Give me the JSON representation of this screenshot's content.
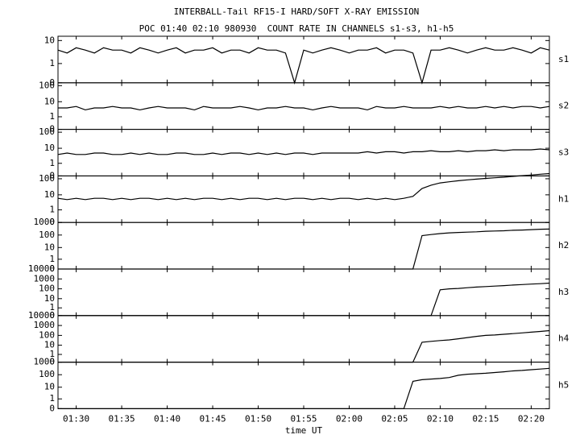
{
  "title": "INTERBALL-Tail RF15-I HARD/SOFT X-RAY EMISSION",
  "subtitle": "POC 01:40 02:10 980930  COUNT RATE IN CHANNELS s1-s3, h1-h5",
  "xlabel": "time UT",
  "x": [
    "01:28",
    "01:29",
    "01:30",
    "01:31",
    "01:32",
    "01:33",
    "01:34",
    "01:35",
    "01:36",
    "01:37",
    "01:38",
    "01:39",
    "01:40",
    "01:41",
    "01:42",
    "01:43",
    "01:44",
    "01:45",
    "01:46",
    "01:47",
    "01:48",
    "01:49",
    "01:50",
    "01:51",
    "01:52",
    "01:53",
    "01:54",
    "01:55",
    "01:56",
    "01:57",
    "01:58",
    "01:59",
    "02:00",
    "02:01",
    "02:02",
    "02:03",
    "02:04",
    "02:05",
    "02:06",
    "02:07",
    "02:08",
    "02:09",
    "02:10",
    "02:11",
    "02:12",
    "02:13",
    "02:14",
    "02:15",
    "02:16",
    "02:17",
    "02:18",
    "02:19",
    "02:20",
    "02:21",
    "02:22"
  ],
  "xlim": [
    "01:28",
    "02:22"
  ],
  "xticks": [
    "01:30",
    "01:35",
    "01:40",
    "01:45",
    "01:50",
    "01:55",
    "02:00",
    "02:05",
    "02:10",
    "02:15",
    "02:20"
  ],
  "chart_data": [
    {
      "type": "line",
      "yscale": "log",
      "ylim": [
        0,
        15
      ],
      "yticks": [
        0,
        1,
        10
      ],
      "series": [
        {
          "name": "s1",
          "color": "#000000",
          "values": [
            4,
            3,
            5,
            4,
            3,
            5,
            4,
            4,
            3,
            5,
            4,
            3,
            4,
            5,
            3,
            4,
            4,
            5,
            3,
            4,
            4,
            3,
            5,
            4,
            4,
            3,
            0,
            4,
            3,
            4,
            5,
            4,
            3,
            4,
            4,
            5,
            3,
            4,
            4,
            3,
            0,
            4,
            4,
            5,
            4,
            3,
            4,
            5,
            4,
            4,
            5,
            4,
            3,
            5,
            4
          ]
        }
      ]
    },
    {
      "type": "line",
      "yscale": "log",
      "ylim": [
        0,
        150
      ],
      "yticks": [
        0,
        1,
        10,
        100
      ],
      "series": [
        {
          "name": "s2",
          "color": "#000000",
          "values": [
            4,
            4,
            5,
            3,
            4,
            4,
            5,
            4,
            4,
            3,
            4,
            5,
            4,
            4,
            4,
            3,
            5,
            4,
            4,
            4,
            5,
            4,
            3,
            4,
            4,
            5,
            4,
            4,
            3,
            4,
            5,
            4,
            4,
            4,
            3,
            5,
            4,
            4,
            5,
            4,
            4,
            4,
            5,
            4,
            5,
            4,
            4,
            5,
            4,
            5,
            4,
            5,
            5,
            4,
            5
          ]
        }
      ]
    },
    {
      "type": "line",
      "yscale": "log",
      "ylim": [
        0,
        150
      ],
      "yticks": [
        0,
        1,
        10,
        100
      ],
      "series": [
        {
          "name": "s3",
          "color": "#000000",
          "values": [
            4,
            5,
            4,
            4,
            5,
            5,
            4,
            4,
            5,
            4,
            5,
            4,
            4,
            5,
            5,
            4,
            4,
            5,
            4,
            5,
            5,
            4,
            5,
            4,
            5,
            4,
            5,
            5,
            4,
            5,
            5,
            5,
            5,
            5,
            6,
            5,
            6,
            6,
            5,
            6,
            6,
            7,
            6,
            6,
            7,
            6,
            7,
            7,
            8,
            7,
            8,
            8,
            8,
            9,
            8
          ]
        }
      ]
    },
    {
      "type": "line",
      "yscale": "log",
      "ylim": [
        0,
        150
      ],
      "yticks": [
        0,
        1,
        10,
        100
      ],
      "series": [
        {
          "name": "h1",
          "color": "#000000",
          "values": [
            6,
            5,
            6,
            5,
            6,
            6,
            5,
            6,
            5,
            6,
            6,
            5,
            6,
            5,
            6,
            5,
            6,
            6,
            5,
            6,
            5,
            6,
            6,
            5,
            6,
            5,
            6,
            6,
            5,
            6,
            5,
            6,
            6,
            5,
            6,
            5,
            6,
            5,
            6,
            8,
            25,
            40,
            55,
            65,
            75,
            85,
            95,
            105,
            115,
            125,
            140,
            155,
            170,
            190,
            210
          ]
        }
      ]
    },
    {
      "type": "line",
      "yscale": "log",
      "ylim": [
        0,
        1000
      ],
      "yticks": [
        0,
        1,
        10,
        100,
        1000
      ],
      "series": [
        {
          "name": "h2",
          "color": "#000000",
          "values": [
            0,
            0,
            0,
            0,
            0,
            0,
            0,
            0,
            0,
            0,
            0,
            0,
            0,
            0,
            0,
            0,
            0,
            0,
            0,
            0,
            0,
            0,
            0,
            0,
            0,
            0,
            0,
            0,
            0,
            0,
            0,
            0,
            0,
            0,
            0,
            0,
            0,
            0,
            0,
            0,
            90,
            110,
            130,
            150,
            160,
            170,
            180,
            200,
            210,
            220,
            240,
            250,
            270,
            290,
            300
          ]
        }
      ]
    },
    {
      "type": "line",
      "yscale": "log",
      "ylim": [
        0,
        10000
      ],
      "yticks": [
        0,
        1,
        10,
        100,
        1000,
        10000
      ],
      "series": [
        {
          "name": "h3",
          "color": "#000000",
          "values": [
            0,
            0,
            0,
            0,
            0,
            0,
            0,
            0,
            0,
            0,
            0,
            0,
            0,
            0,
            0,
            0,
            0,
            0,
            0,
            0,
            0,
            0,
            0,
            0,
            0,
            0,
            0,
            0,
            0,
            0,
            0,
            0,
            0,
            0,
            0,
            0,
            0,
            0,
            0,
            0,
            0,
            0,
            80,
            100,
            110,
            130,
            150,
            170,
            190,
            210,
            240,
            270,
            300,
            330,
            380
          ]
        }
      ]
    },
    {
      "type": "line",
      "yscale": "log",
      "ylim": [
        0,
        10000
      ],
      "yticks": [
        0,
        1,
        10,
        100,
        1000,
        10000
      ],
      "series": [
        {
          "name": "h4",
          "color": "#000000",
          "values": [
            0,
            0,
            0,
            0,
            0,
            0,
            0,
            0,
            0,
            0,
            0,
            0,
            0,
            0,
            0,
            0,
            0,
            0,
            0,
            0,
            0,
            0,
            0,
            0,
            0,
            0,
            0,
            0,
            0,
            0,
            0,
            0,
            0,
            0,
            0,
            0,
            0,
            0,
            0,
            0,
            20,
            25,
            30,
            35,
            45,
            60,
            80,
            100,
            110,
            130,
            150,
            180,
            210,
            250,
            300
          ]
        }
      ]
    },
    {
      "type": "line",
      "yscale": "log",
      "ylim": [
        0,
        1000
      ],
      "yticks": [
        0,
        1,
        10,
        100,
        1000
      ],
      "series": [
        {
          "name": "h5",
          "color": "#000000",
          "values": [
            0,
            0,
            0,
            0,
            0,
            0,
            0,
            0,
            0,
            0,
            0,
            0,
            0,
            0,
            0,
            0,
            0,
            0,
            0,
            0,
            0,
            0,
            0,
            0,
            0,
            0,
            0,
            0,
            0,
            0,
            0,
            0,
            0,
            0,
            0,
            0,
            0,
            0,
            0,
            30,
            40,
            45,
            50,
            60,
            90,
            110,
            120,
            130,
            150,
            170,
            200,
            220,
            250,
            280,
            320
          ]
        }
      ]
    }
  ]
}
